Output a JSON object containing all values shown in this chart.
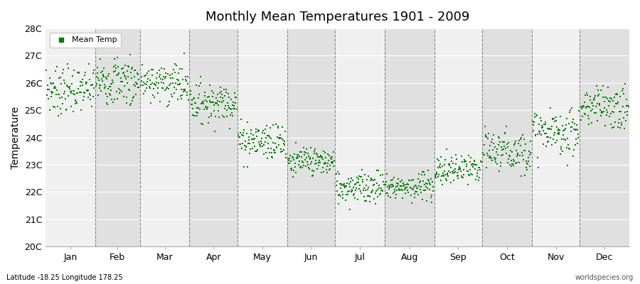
{
  "title": "Monthly Mean Temperatures 1901 - 2009",
  "ylabel": "Temperature",
  "xlabel_labels": [
    "Jan",
    "Feb",
    "Mar",
    "Apr",
    "May",
    "Jun",
    "Jul",
    "Aug",
    "Sep",
    "Oct",
    "Nov",
    "Dec"
  ],
  "ylim": [
    20,
    28
  ],
  "ytick_labels": [
    "20C",
    "21C",
    "22C",
    "23C",
    "24C",
    "25C",
    "26C",
    "27C",
    "28C"
  ],
  "ytick_values": [
    20,
    21,
    22,
    23,
    24,
    25,
    26,
    27,
    28
  ],
  "marker_color": "#008000",
  "bg_light": "#f0f0f0",
  "bg_dark": "#e0e0e0",
  "subtitle_left": "Latitude -18.25 Longitude 178.25",
  "subtitle_right": "worldspecies.org",
  "legend_label": "Mean Temp",
  "monthly_means": [
    25.75,
    26.1,
    26.0,
    25.3,
    23.9,
    23.1,
    22.2,
    22.2,
    22.8,
    23.5,
    24.2,
    25.1
  ],
  "monthly_stds": [
    0.42,
    0.45,
    0.38,
    0.35,
    0.35,
    0.28,
    0.28,
    0.28,
    0.3,
    0.38,
    0.4,
    0.42
  ],
  "n_years": 109,
  "figsize": [
    9.0,
    4.0
  ],
  "dpi": 100
}
